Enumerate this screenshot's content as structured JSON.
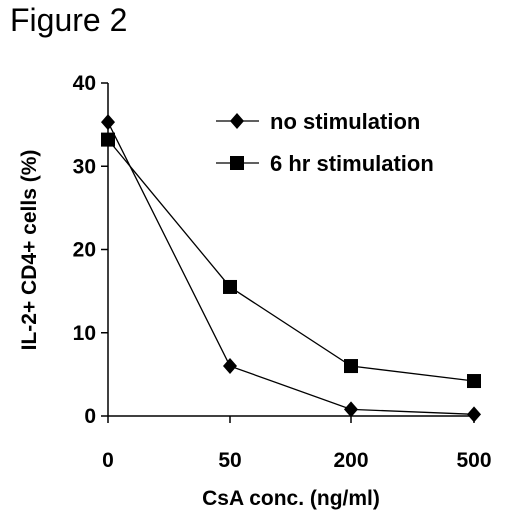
{
  "figure_title": "Figure 2",
  "chart_data": {
    "type": "line",
    "categories": [
      "0",
      "50",
      "200",
      "500"
    ],
    "xlabel": "CsA conc. (ng/ml)",
    "ylabel": "IL-2+ CD4+ cells (%)",
    "ylim": [
      0,
      40
    ],
    "yticks": [
      0,
      10,
      20,
      30,
      40
    ],
    "grid": false,
    "legend_position": "top-right",
    "series": [
      {
        "name": "no stimulation",
        "marker": "diamond",
        "color": "#000000",
        "values": [
          35.3,
          6.0,
          0.8,
          0.2
        ]
      },
      {
        "name": "6 hr stimulation",
        "marker": "square",
        "color": "#000000",
        "values": [
          33.2,
          15.5,
          6.0,
          4.2
        ]
      }
    ]
  }
}
